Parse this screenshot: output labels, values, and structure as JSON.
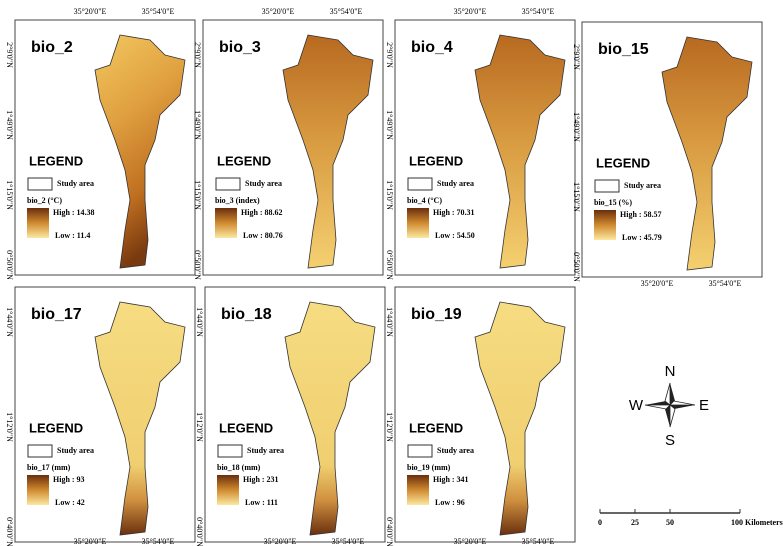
{
  "panels": [
    {
      "title": "bio_2",
      "legend_title": "LEGEND",
      "study_area": "Study area",
      "variable": "bio_2 (°C)",
      "high": "High : 14.38",
      "low": "Low : 11.4",
      "top_labels": [
        "35°20'0\"E",
        "35°54'0\"E"
      ],
      "side_labels": [
        "2°9'0\"N",
        "1°49'0\"N",
        "1°15'0\"N",
        "0°50'0\"N"
      ]
    },
    {
      "title": "bio_3",
      "legend_title": "LEGEND",
      "study_area": "Study area",
      "variable": "bio_3 (index)",
      "high": "High : 88.62",
      "low": "Low : 80.76",
      "top_labels": [
        "35°20'0\"E",
        "35°54'0\"E"
      ],
      "side_labels": [
        "2°9'0\"N",
        "1°49'0\"N",
        "1°15'0\"N",
        "0°50'0\"N"
      ]
    },
    {
      "title": "bio_4",
      "legend_title": "LEGEND",
      "study_area": "Study area",
      "variable": "bio_4 (°C)",
      "high": "High : 70.31",
      "low": "Low : 54.50",
      "top_labels": [
        "35°20'0\"E",
        "35°54'0\"E"
      ],
      "side_labels": [
        "2°9'0\"N",
        "1°49'0\"N",
        "1°15'0\"N",
        "0°50'0\"N"
      ]
    },
    {
      "title": "bio_15",
      "legend_title": "LEGEND",
      "study_area": "Study area",
      "variable": "bio_15 (%)",
      "high": "High : 58.57",
      "low": "Low : 45.79",
      "top_labels": [
        "35°20'0\"E",
        "35°54'0\"E"
      ],
      "side_labels": [
        "2°9'0\"N",
        "1°49'0\"N",
        "1°15'0\"N",
        "0°50'0\"N"
      ]
    },
    {
      "title": "bio_17",
      "legend_title": "LEGEND",
      "study_area": "Study area",
      "variable": "bio_17 (mm)",
      "high": "High : 93",
      "low": "Low : 42",
      "top_labels": [
        "35°20'0\"E",
        "35°54'0\"E"
      ],
      "side_labels": [
        "1°44'0\"N",
        "1°12'0\"N",
        "0°40'0\"N"
      ]
    },
    {
      "title": "bio_18",
      "legend_title": "LEGEND",
      "study_area": "Study area",
      "variable": "bio_18 (mm)",
      "high": "High : 231",
      "low": "Low : 111",
      "top_labels": [
        "35°20'0\"E",
        "35°54'0\"E"
      ],
      "side_labels": [
        "1°44'0\"N",
        "1°12'0\"N",
        "0°40'0\"N"
      ]
    },
    {
      "title": "bio_19",
      "legend_title": "LEGEND",
      "study_area": "Study area",
      "variable": "bio_19 (mm)",
      "high": "High : 341",
      "low": "Low : 96",
      "top_labels": [
        "35°20'0\"E",
        "35°54'0\"E"
      ],
      "side_labels": [
        "1°44'0\"N",
        "1°12'0\"N",
        "0°40'0\"N"
      ]
    }
  ],
  "compass": {
    "north": "N",
    "south": "S",
    "east": "E",
    "west": "W"
  },
  "scale": {
    "ticks": [
      "0",
      "25",
      "50",
      "100 Kilometers"
    ]
  }
}
